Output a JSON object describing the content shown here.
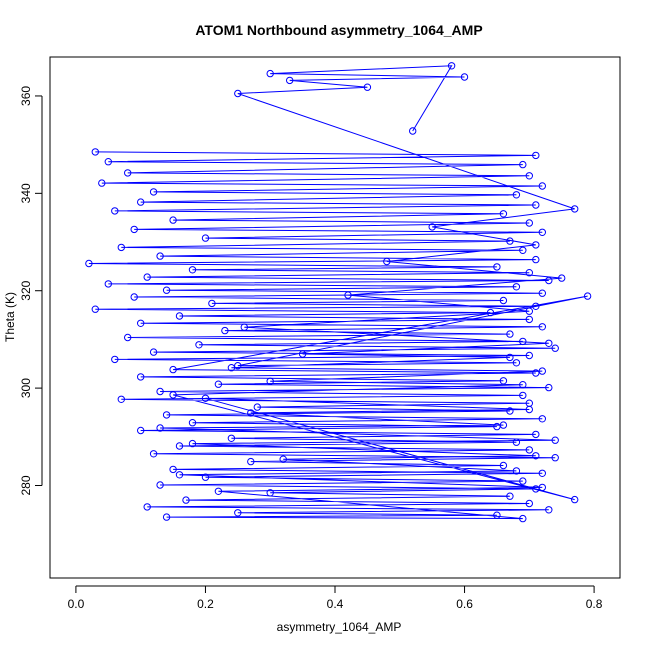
{
  "chart_data": {
    "type": "line",
    "title": "ATOM1 Northbound asymmetry_1064_AMP",
    "xlabel": "asymmetry_1064_AMP",
    "ylabel": "Theta (K)",
    "xlim": [
      -0.04,
      0.84
    ],
    "ylim": [
      261,
      368
    ],
    "x_ticks": [
      0.0,
      0.2,
      0.4,
      0.6,
      0.8
    ],
    "x_tick_labels": [
      "0.0",
      "0.2",
      "0.4",
      "0.6",
      "0.8"
    ],
    "y_ticks": [
      280,
      300,
      320,
      340,
      360
    ],
    "y_tick_labels": [
      "280",
      "300",
      "320",
      "340",
      "360"
    ],
    "markers": "open-circle",
    "grid": false,
    "legend": "none",
    "color": "#0000ff",
    "series": [
      {
        "x": [
          0.03,
          0.71,
          0.05,
          0.69,
          0.08,
          0.7,
          0.04,
          0.72,
          0.12,
          0.68,
          0.1,
          0.71,
          0.06,
          0.66,
          0.15,
          0.7,
          0.09,
          0.72,
          0.2,
          0.67,
          0.07,
          0.69,
          0.13,
          0.71,
          0.02,
          0.65,
          0.18,
          0.7,
          0.11,
          0.73,
          0.05,
          0.68,
          0.14,
          0.72,
          0.09,
          0.66,
          0.21,
          0.71,
          0.03,
          0.64,
          0.16,
          0.7,
          0.1,
          0.72,
          0.23,
          0.67,
          0.08,
          0.69,
          0.19,
          0.74,
          0.12,
          0.7,
          0.06,
          0.68,
          0.25,
          0.79,
          0.15,
          0.71,
          0.1,
          0.66,
          0.22,
          0.73,
          0.13,
          0.69,
          0.07,
          0.7,
          0.28,
          0.67,
          0.14,
          0.72,
          0.18,
          0.65,
          0.1,
          0.71,
          0.24,
          0.68,
          0.16,
          0.7,
          0.12,
          0.74,
          0.27,
          0.66,
          0.15,
          0.72,
          0.2,
          0.69,
          0.13,
          0.71,
          0.3,
          0.67,
          0.17,
          0.7,
          0.11,
          0.73,
          0.25,
          0.65,
          0.14,
          0.69,
          0.22,
          0.72,
          0.16,
          0.68,
          0.32,
          0.71,
          0.18,
          0.74,
          0.13,
          0.66,
          0.27,
          0.7,
          0.2,
          0.77,
          0.15,
          0.69,
          0.3,
          0.72,
          0.24,
          0.67,
          0.35,
          0.73,
          0.26,
          0.7,
          0.42,
          0.75,
          0.48,
          0.71,
          0.55,
          0.77,
          0.25,
          0.45,
          0.33,
          0.6,
          0.3,
          0.58,
          0.52
        ],
        "y": [
          348.5,
          347.8,
          346.5,
          345.9,
          344.2,
          343.6,
          342.1,
          341.5,
          340.3,
          339.7,
          338.2,
          337.6,
          336.4,
          335.8,
          334.5,
          333.9,
          332.6,
          332.0,
          330.8,
          330.2,
          328.9,
          328.3,
          327.1,
          326.4,
          325.6,
          324.9,
          324.3,
          323.7,
          322.8,
          322.1,
          321.4,
          320.8,
          320.1,
          319.5,
          318.7,
          318.0,
          317.4,
          316.8,
          316.2,
          315.5,
          314.8,
          314.1,
          313.3,
          312.6,
          311.8,
          311.1,
          310.4,
          309.6,
          308.9,
          308.2,
          307.4,
          306.7,
          305.9,
          305.2,
          304.6,
          318.9,
          303.8,
          303.1,
          302.3,
          301.5,
          300.8,
          300.1,
          299.3,
          298.5,
          297.7,
          296.9,
          296.1,
          295.3,
          294.5,
          293.7,
          292.9,
          292.1,
          291.3,
          290.5,
          289.7,
          288.9,
          288.1,
          287.3,
          286.5,
          285.7,
          284.9,
          284.1,
          283.3,
          282.5,
          281.7,
          280.9,
          280.1,
          279.3,
          278.5,
          277.8,
          277.0,
          276.3,
          275.6,
          275.0,
          274.4,
          273.9,
          273.5,
          273.2,
          278.8,
          279.6,
          282.2,
          283.0,
          285.4,
          286.1,
          288.6,
          289.3,
          291.8,
          292.4,
          294.9,
          295.6,
          297.9,
          277.1,
          298.6,
          300.7,
          301.4,
          303.5,
          304.2,
          306.3,
          307.0,
          309.2,
          312.5,
          315.8,
          319.1,
          322.6,
          326.0,
          329.4,
          333.1,
          336.8,
          360.5,
          361.8,
          363.2,
          363.9,
          364.6,
          366.2,
          352.8
        ]
      }
    ]
  }
}
